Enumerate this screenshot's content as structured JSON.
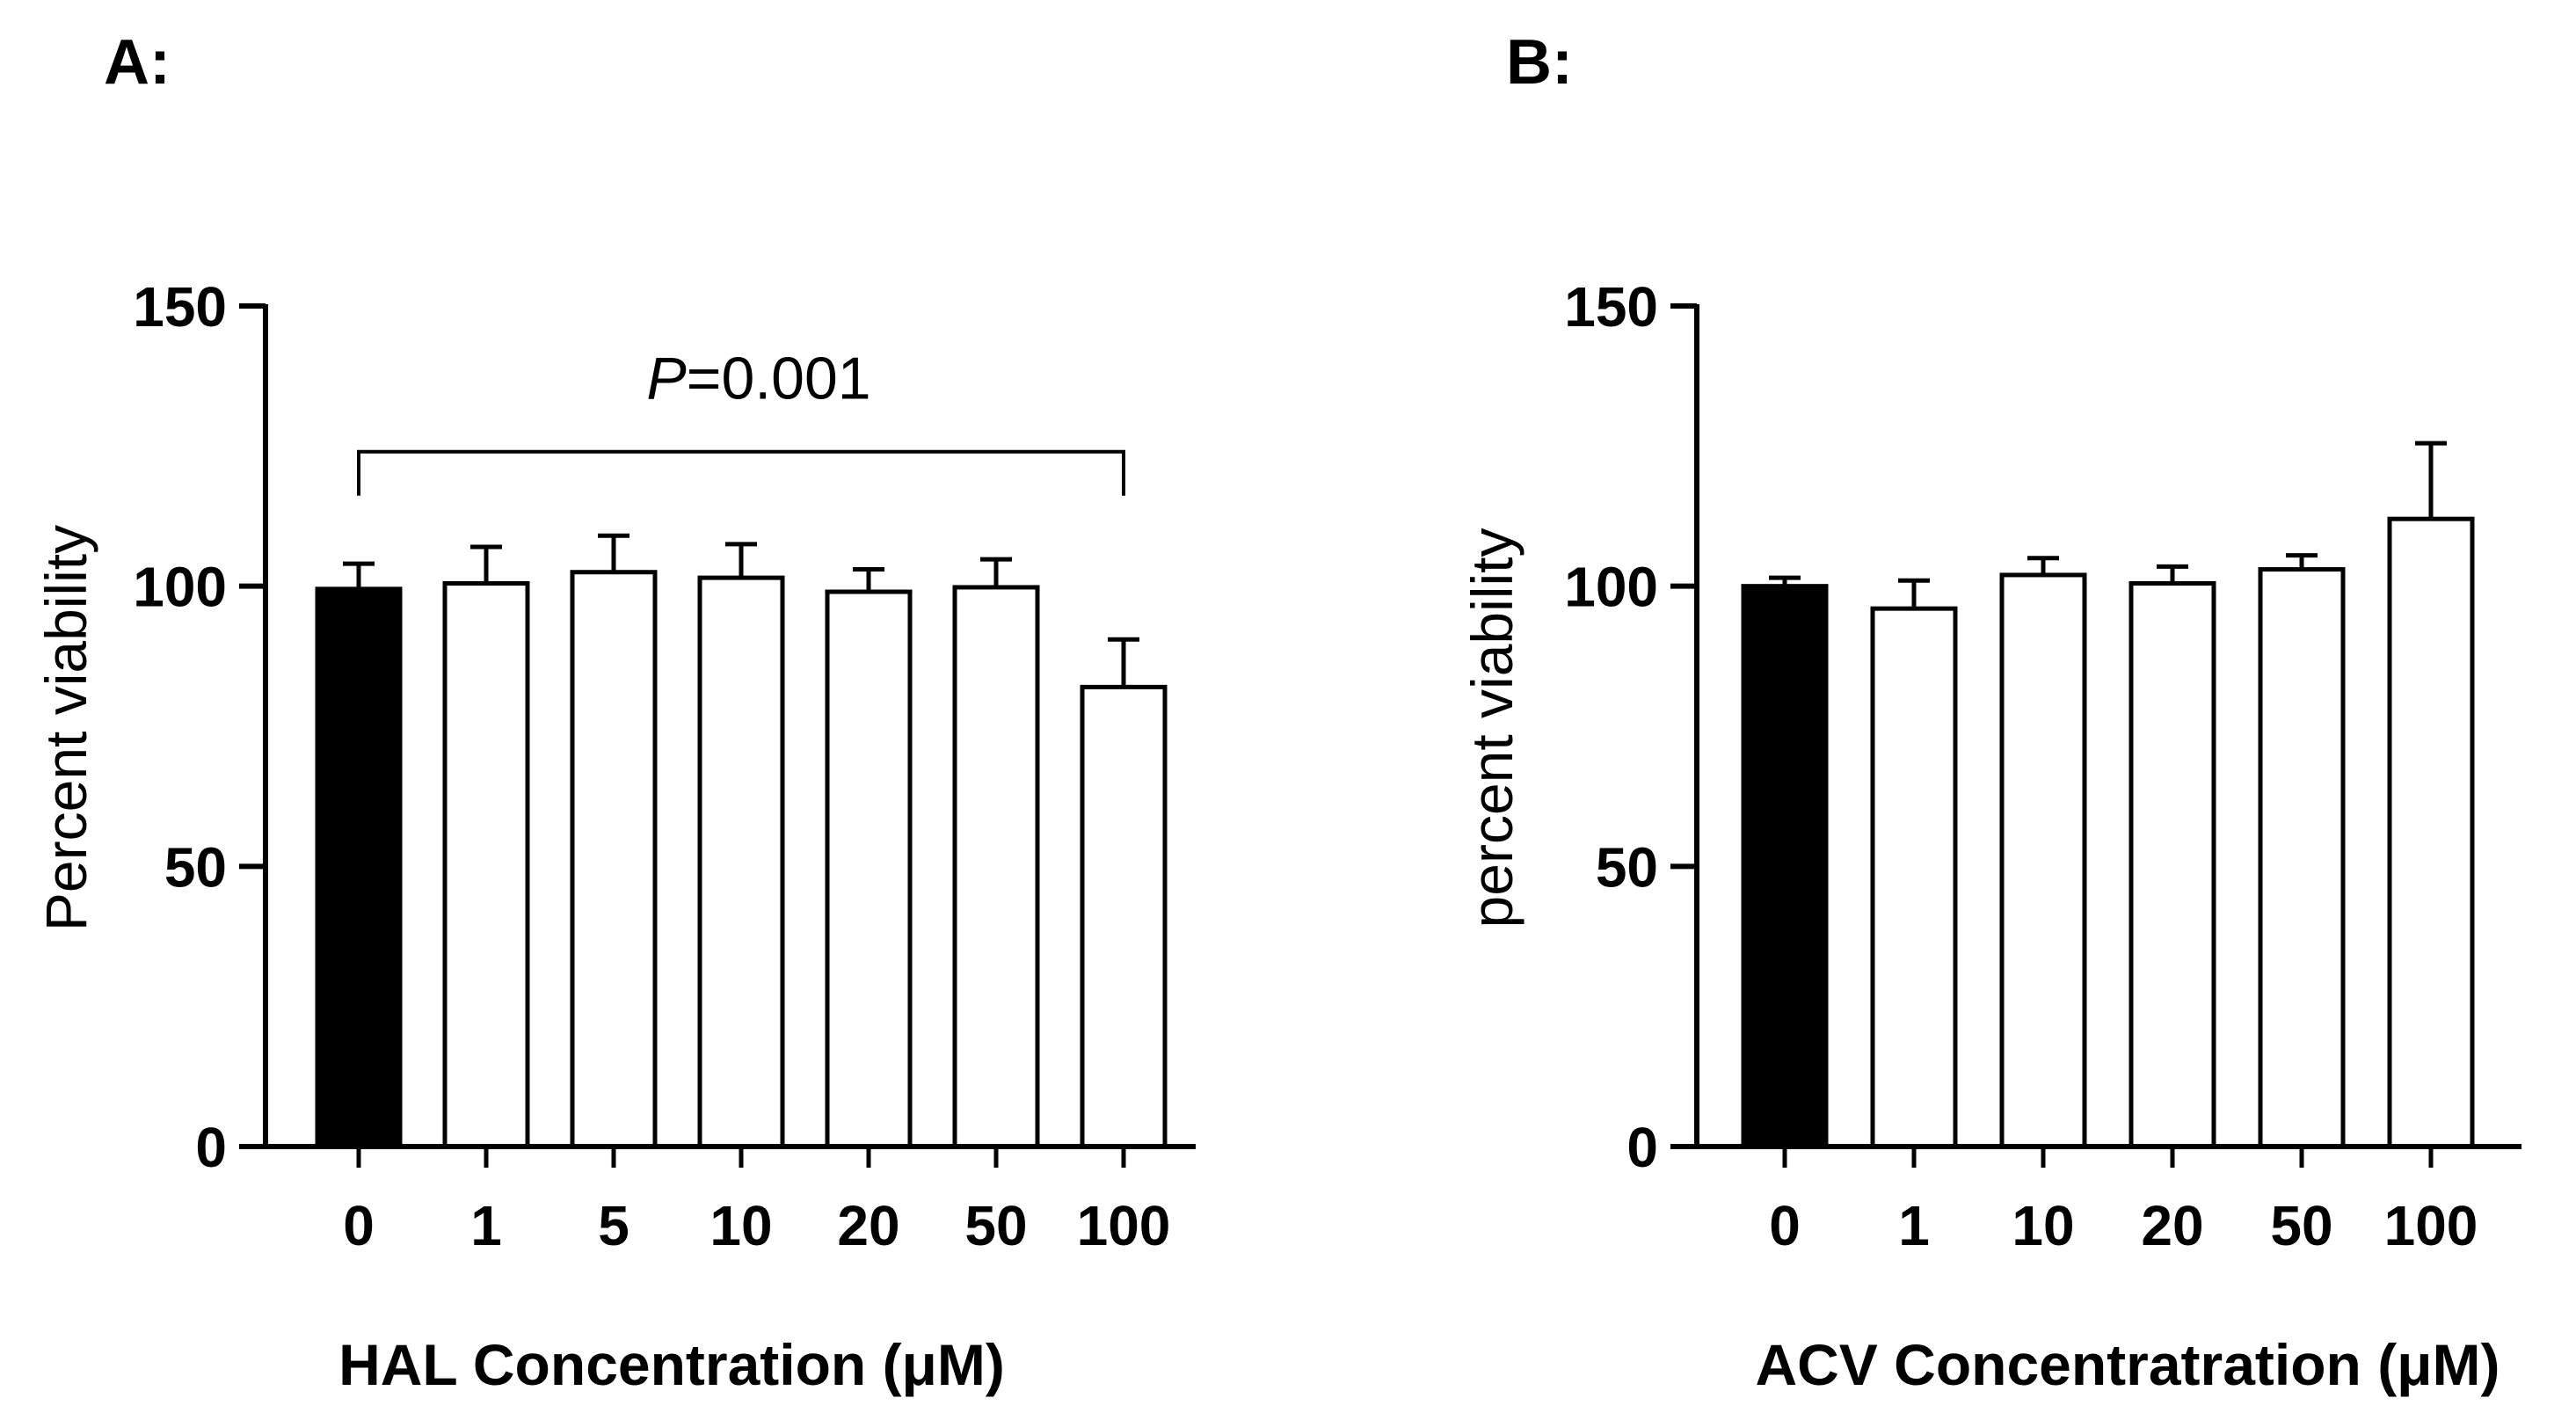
{
  "chart_data": [
    {
      "type": "bar",
      "panel": "A:",
      "title": "",
      "xlabel": "HAL Concentration (μM)",
      "ylabel": "Percent viability",
      "categories": [
        "0",
        "1",
        "5",
        "10",
        "20",
        "50",
        "100"
      ],
      "values": [
        99.5,
        100.5,
        102.5,
        101.5,
        99,
        99.8,
        82
      ],
      "errors": [
        4.5,
        6.5,
        6.5,
        6,
        4,
        5,
        8.5
      ],
      "colors": [
        "#000000",
        "#ffffff",
        "#ffffff",
        "#ffffff",
        "#ffffff",
        "#ffffff",
        "#ffffff"
      ],
      "ylim": [
        0,
        150
      ],
      "yticks": [
        "0",
        "50",
        "100",
        "150"
      ],
      "annotation": {
        "p_letter": "P",
        "p_rest": "=0.001",
        "from_category": "0",
        "to_category": "100",
        "bracket_level": 124
      }
    },
    {
      "type": "bar",
      "panel": "B:",
      "title": "",
      "xlabel": "ACV Concentratration (μM)",
      "ylabel": "percent viability",
      "categories": [
        "0",
        "1",
        "10",
        "20",
        "50",
        "100"
      ],
      "values": [
        100,
        96,
        102,
        100.5,
        103,
        112
      ],
      "errors": [
        1.5,
        5,
        3,
        3,
        2.5,
        13.5
      ],
      "colors": [
        "#000000",
        "#ffffff",
        "#ffffff",
        "#ffffff",
        "#ffffff",
        "#ffffff"
      ],
      "ylim": [
        0,
        150
      ],
      "yticks": [
        "0",
        "50",
        "100",
        "150"
      ]
    }
  ]
}
